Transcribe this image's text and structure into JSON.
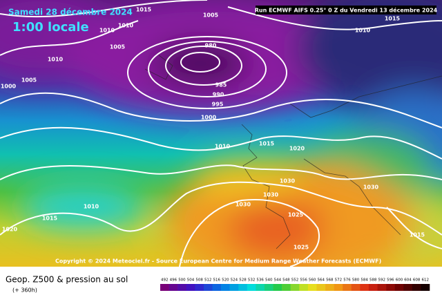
{
  "header": {
    "date": "Samedi 28 décembre 2024",
    "time": "1:00 locale",
    "run": "Run ECMWF AIFS 0.25° 0 Z du Vendredi 13 décembre 2024"
  },
  "isobar_labels": [
    1015,
    1005,
    1010,
    1010,
    1005,
    1010,
    1005,
    1000,
    980,
    985,
    990,
    995,
    1000,
    1015,
    1010,
    1010,
    1015,
    1020,
    1030,
    1030,
    1030,
    1030,
    1010,
    1015,
    1020,
    1025,
    1025,
    1015
  ],
  "copyright": "Copyright © 2024 Meteociel.fr - Source European Centre for Medium Range Weather Forecasts (ECMWF)",
  "footer": {
    "title": "Geop. Z500 & pression au sol",
    "lead": "(+ 360h)"
  },
  "colorbar": {
    "labels": [
      492,
      496,
      500,
      504,
      508,
      512,
      516,
      520,
      524,
      528,
      532,
      536,
      540,
      544,
      548,
      552,
      556,
      560,
      564,
      568,
      572,
      576,
      580,
      584,
      588,
      592,
      596,
      600,
      604,
      608,
      612
    ]
  }
}
